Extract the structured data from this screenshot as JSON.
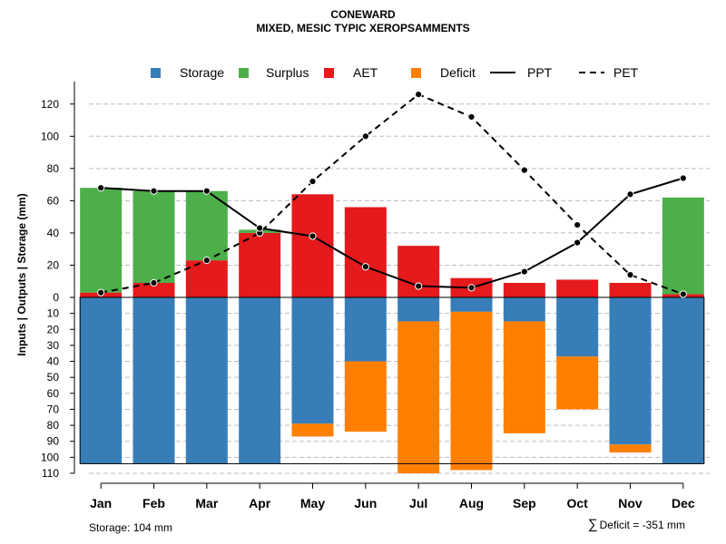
{
  "chart_data": {
    "type": "bar",
    "title": "CONEWARD",
    "subtitle": "MIXED, MESIC TYPIC XEROPSAMMENTS",
    "ylabel": "Inputs | Outputs | Storage    (mm)",
    "xlabel": "",
    "categories": [
      "Jan",
      "Feb",
      "Mar",
      "Apr",
      "May",
      "Jun",
      "Jul",
      "Aug",
      "Sep",
      "Oct",
      "Nov",
      "Dec"
    ],
    "ylim_upper": [
      0,
      130
    ],
    "ylim_lower": [
      0,
      110
    ],
    "upper_ticks": [
      0,
      20,
      40,
      60,
      80,
      100,
      120
    ],
    "lower_ticks": [
      0,
      10,
      20,
      30,
      40,
      50,
      60,
      70,
      80,
      90,
      100,
      110
    ],
    "lower_tick_labels": [
      "0",
      "10",
      "20",
      "30",
      "40",
      "50",
      "60",
      "70",
      "80",
      "90",
      "100",
      "110"
    ],
    "series": [
      {
        "name": "Storage",
        "color": "#377EB8",
        "values": [
          104,
          104,
          104,
          104,
          79,
          40,
          15,
          9,
          15,
          37,
          92,
          104
        ]
      },
      {
        "name": "Surplus",
        "color": "#4DAF4A",
        "values": [
          65,
          57,
          43,
          2,
          0,
          0,
          0,
          0,
          0,
          0,
          0,
          60
        ]
      },
      {
        "name": "AET",
        "color": "#E41A1C",
        "values": [
          3,
          9,
          23,
          40,
          64,
          56,
          32,
          12,
          9,
          11,
          9,
          2
        ]
      },
      {
        "name": "Deficit",
        "color": "#FF7F00",
        "values": [
          0,
          0,
          0,
          0,
          8,
          44,
          95,
          99,
          70,
          33,
          5,
          0
        ]
      },
      {
        "name": "PPT",
        "color": "#000000",
        "style": "solid",
        "values": [
          68,
          66,
          66,
          43,
          38,
          19,
          7,
          6,
          16,
          34,
          64,
          74
        ]
      },
      {
        "name": "PET",
        "color": "#000000",
        "style": "dashed",
        "values": [
          3,
          9,
          23,
          40,
          72,
          100,
          126,
          112,
          79,
          45,
          14,
          2
        ]
      }
    ],
    "legend": [
      "Storage",
      "Surplus",
      "AET",
      "Deficit",
      "PPT",
      "PET"
    ],
    "legend_position": "top",
    "grid": true
  },
  "footer": {
    "storage_note": "Storage: 104 mm",
    "deficit_note": "Deficit = -351 mm",
    "deficit_symbol": "∑"
  }
}
